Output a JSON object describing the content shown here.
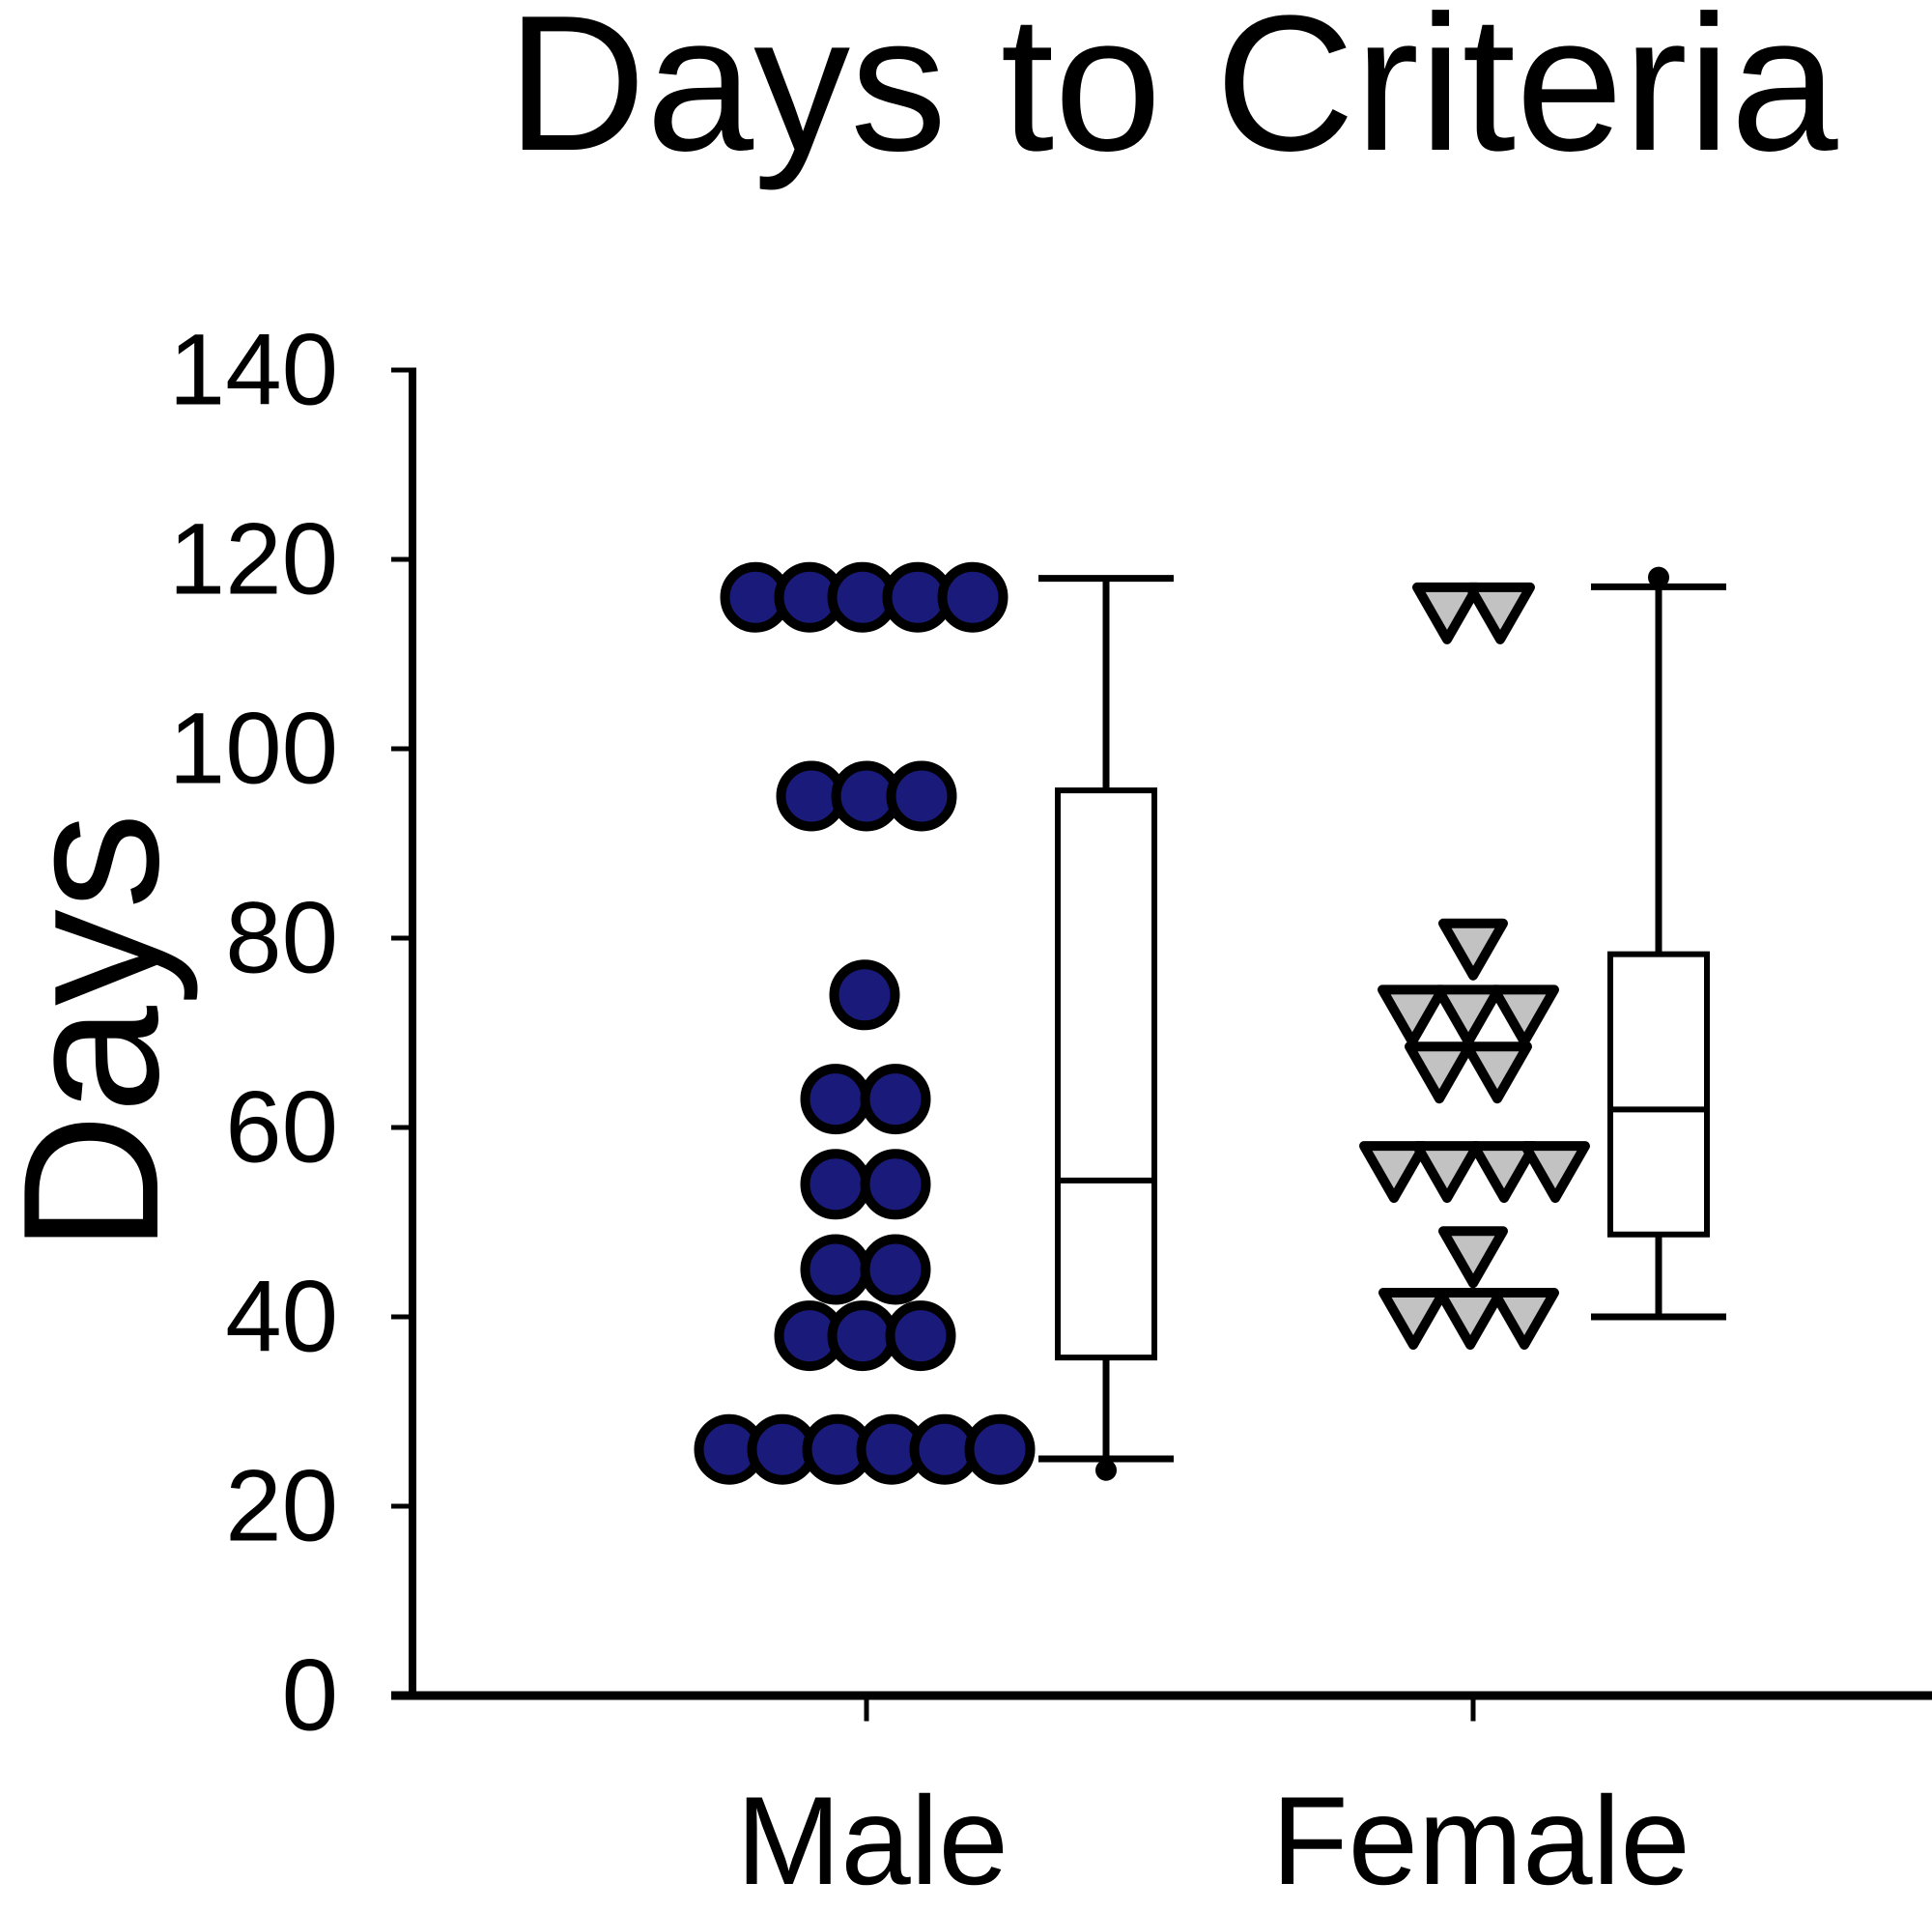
{
  "title": "Days to Criteria",
  "y_axis": {
    "label": "Days",
    "ticks": [
      "0",
      "20",
      "40",
      "60",
      "80",
      "100",
      "120",
      "140"
    ]
  },
  "x_axis": {
    "categories": [
      "Male",
      "Female"
    ]
  },
  "chart_data": {
    "type": "scatter",
    "subtype": "beeswarm-with-boxplot",
    "title": "Days to Criteria",
    "ylabel": "Days",
    "xlabel": "",
    "ylim": [
      0,
      140
    ],
    "yticks": [
      0,
      20,
      40,
      60,
      80,
      100,
      120,
      140
    ],
    "grid": false,
    "legend": "none",
    "categories": [
      "Male",
      "Female"
    ],
    "units": "days",
    "series": [
      {
        "name": "Male",
        "marker": "circle",
        "marker_fill": "#1a1a7a",
        "marker_stroke": "#000000",
        "n": 24,
        "points": [
          [
            782,
            116
          ],
          [
            838,
            116
          ],
          [
            893,
            116
          ],
          [
            950,
            116
          ],
          [
            1007,
            116
          ],
          [
            840,
            95
          ],
          [
            897,
            95
          ],
          [
            954,
            95
          ],
          [
            895,
            74
          ],
          [
            865,
            63
          ],
          [
            927,
            63
          ],
          [
            865,
            54
          ],
          [
            927,
            54
          ],
          [
            865,
            45
          ],
          [
            927,
            45
          ],
          [
            838,
            38
          ],
          [
            893,
            38
          ],
          [
            953,
            38
          ],
          [
            755,
            26
          ],
          [
            810,
            26
          ],
          [
            867,
            26
          ],
          [
            923,
            26
          ],
          [
            978,
            26
          ],
          [
            1035,
            26
          ]
        ],
        "box": {
          "center_x": 1145,
          "median": 54.4,
          "q1": 35.7,
          "q3": 95.6,
          "whisker_low": 25,
          "whisker_high": 118,
          "outliers": [
            [
              1145,
              23.8
            ]
          ]
        }
      },
      {
        "name": "Female",
        "marker": "triangle-down",
        "marker_fill": "#c2c2c2",
        "marker_stroke": "#000000",
        "n": 16,
        "points": [
          [
            1498,
            114.5
          ],
          [
            1553,
            114.5
          ],
          [
            1525,
            79
          ],
          [
            1462,
            72
          ],
          [
            1520,
            72
          ],
          [
            1578,
            72
          ],
          [
            1490,
            66
          ],
          [
            1550,
            66
          ],
          [
            1443,
            55.5
          ],
          [
            1498,
            55.5
          ],
          [
            1557,
            55.5
          ],
          [
            1610,
            55.5
          ],
          [
            1525,
            46.5
          ],
          [
            1463,
            40
          ],
          [
            1522,
            40
          ],
          [
            1578,
            40
          ]
        ],
        "box": {
          "center_x": 1717,
          "median": 61.9,
          "q1": 48.7,
          "q3": 78.3,
          "whisker_low": 40,
          "whisker_high": 117.1,
          "outliers": [
            [
              1717,
              118.1
            ]
          ]
        }
      }
    ]
  }
}
